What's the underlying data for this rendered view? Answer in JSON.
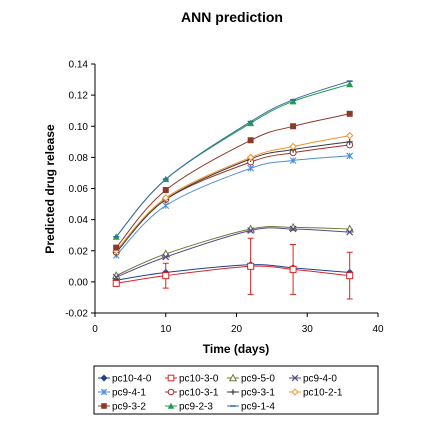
{
  "chart_data": {
    "type": "line",
    "title": "ANN prediction",
    "xlabel": "Time (days)",
    "ylabel": "Predicted drug release",
    "xlim": [
      0,
      40
    ],
    "ylim": [
      -0.02,
      0.14
    ],
    "x_ticks": [
      "0",
      "10",
      "20",
      "30",
      "40"
    ],
    "y_ticks": [
      "-0.02",
      "0.00",
      "0.02",
      "0.04",
      "0.06",
      "0.08",
      "0.10",
      "0.12",
      "0.14"
    ],
    "grid": false,
    "legend_position": "bottom",
    "x": [
      3,
      10,
      22,
      28,
      36
    ],
    "series": [
      {
        "name": "pc10-4-0",
        "color": "#1f3f8f",
        "marker": "diamond",
        "values": [
          0.001,
          0.006,
          0.011,
          0.009,
          0.006
        ],
        "errors": [
          0,
          0,
          0,
          0,
          0
        ]
      },
      {
        "name": "pc10-3-0",
        "color": "#d62728",
        "marker": "square-open",
        "values": [
          -0.001,
          0.004,
          0.01,
          0.008,
          0.004
        ],
        "errors": [
          0,
          0.008,
          0.018,
          0.016,
          0.015
        ]
      },
      {
        "name": "pc9-5-0",
        "color": "#6b7a3a",
        "marker": "triangle-open",
        "values": [
          0.004,
          0.018,
          0.034,
          0.035,
          0.034
        ],
        "errors": [
          0,
          0,
          0,
          0,
          0
        ]
      },
      {
        "name": "pc9-4-0",
        "color": "#5b4a8a",
        "marker": "x",
        "values": [
          0.003,
          0.016,
          0.033,
          0.034,
          0.032
        ],
        "errors": [
          0,
          0,
          0,
          0,
          0
        ]
      },
      {
        "name": "pc9-4-1",
        "color": "#4f8fd6",
        "marker": "asterisk",
        "values": [
          0.017,
          0.049,
          0.073,
          0.078,
          0.081
        ],
        "errors": [
          0,
          0,
          0,
          0,
          0
        ]
      },
      {
        "name": "pc10-3-1",
        "color": "#a03030",
        "marker": "circle-open",
        "values": [
          0.019,
          0.053,
          0.077,
          0.083,
          0.088
        ],
        "errors": [
          0,
          0,
          0,
          0,
          0
        ]
      },
      {
        "name": "pc9-3-1",
        "color": "#3a3a3a",
        "marker": "plus",
        "values": [
          0.019,
          0.053,
          0.079,
          0.085,
          0.09
        ],
        "errors": [
          0,
          0,
          0,
          0,
          0
        ]
      },
      {
        "name": "pc10-2-1",
        "color": "#f0922b",
        "marker": "diamond-open",
        "values": [
          0.02,
          0.054,
          0.08,
          0.087,
          0.094
        ],
        "errors": [
          0,
          0,
          0,
          0,
          0
        ]
      },
      {
        "name": "pc9-3-2",
        "color": "#8b3a2a",
        "marker": "square",
        "values": [
          0.022,
          0.059,
          0.091,
          0.1,
          0.108
        ],
        "errors": [
          0,
          0,
          0,
          0,
          0
        ]
      },
      {
        "name": "pc9-2-3",
        "color": "#1fa050",
        "marker": "triangle",
        "values": [
          0.029,
          0.066,
          0.102,
          0.116,
          0.127
        ],
        "errors": [
          0,
          0,
          0,
          0,
          0
        ]
      },
      {
        "name": "pc9-1-4",
        "color": "#3a6aa0",
        "marker": "dash",
        "values": [
          0.029,
          0.066,
          0.103,
          0.117,
          0.129
        ],
        "errors": [
          0,
          0,
          0,
          0,
          0
        ]
      }
    ]
  }
}
